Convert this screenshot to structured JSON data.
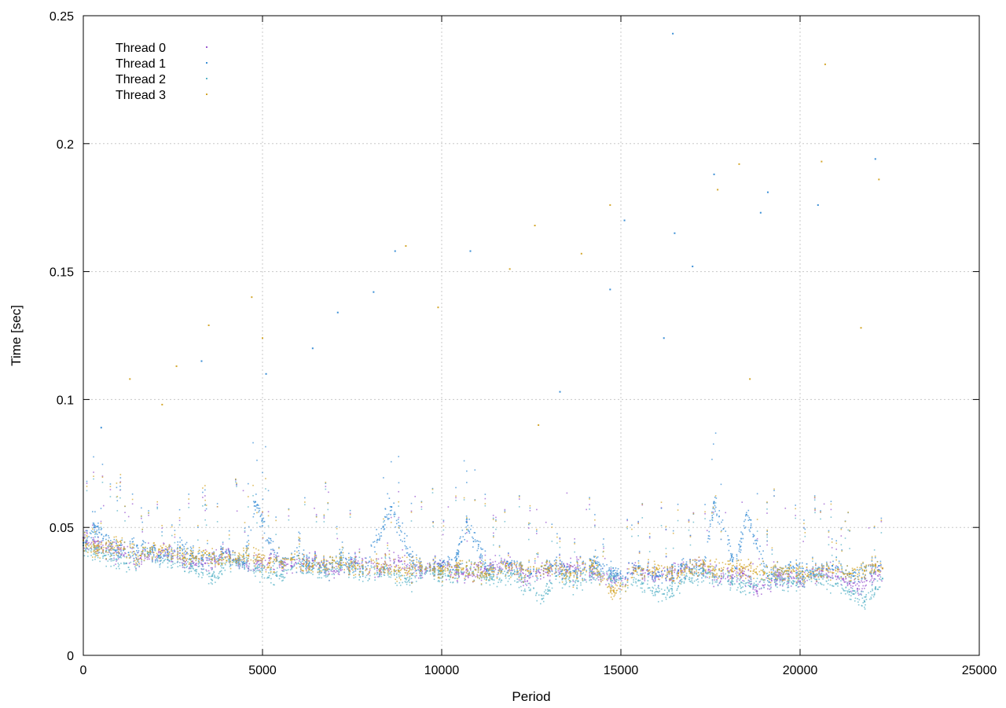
{
  "chart_data": {
    "type": "scatter",
    "title": "",
    "xlabel": "Period",
    "ylabel": "Time [sec]",
    "xlim": [
      0,
      25000
    ],
    "ylim": [
      0,
      0.25
    ],
    "x_ticks": [
      0,
      5000,
      10000,
      15000,
      20000,
      25000
    ],
    "x_tick_labels": [
      "0",
      "5000",
      "10000",
      "15000",
      "20000",
      "25000"
    ],
    "y_ticks": [
      0,
      0.05,
      0.1,
      0.15,
      0.2,
      0.25
    ],
    "y_tick_labels": [
      "0",
      "0.05",
      "0.1",
      "0.15",
      "0.2",
      "0.25"
    ],
    "grid": true,
    "legend_position": "top-left",
    "marker": "dot",
    "series": [
      {
        "name": "Thread 0",
        "color": "#9b59d0",
        "x_range": [
          0,
          22300
        ],
        "summary": {
          "median_start": 0.045,
          "median_end": 0.033,
          "typical_min": 0.022,
          "typical_max": 0.06
        },
        "sample_points": [
          [
            0,
            0.046
          ],
          [
            500,
            0.042
          ],
          [
            1000,
            0.04
          ],
          [
            1600,
            0.038
          ],
          [
            2200,
            0.041
          ],
          [
            2800,
            0.037
          ],
          [
            3400,
            0.036
          ],
          [
            4000,
            0.04
          ],
          [
            4600,
            0.034
          ],
          [
            5200,
            0.038
          ],
          [
            5800,
            0.035
          ],
          [
            6400,
            0.037
          ],
          [
            7000,
            0.033
          ],
          [
            7600,
            0.036
          ],
          [
            8200,
            0.034
          ],
          [
            8800,
            0.037
          ],
          [
            9400,
            0.033
          ],
          [
            10000,
            0.035
          ],
          [
            10600,
            0.032
          ],
          [
            11200,
            0.034
          ],
          [
            11800,
            0.036
          ],
          [
            12400,
            0.031
          ],
          [
            13000,
            0.033
          ],
          [
            13600,
            0.035
          ],
          [
            14200,
            0.032
          ],
          [
            14800,
            0.03
          ],
          [
            15400,
            0.034
          ],
          [
            16000,
            0.031
          ],
          [
            16600,
            0.033
          ],
          [
            17200,
            0.035
          ],
          [
            17800,
            0.03
          ],
          [
            18400,
            0.032
          ],
          [
            18800,
            0.025
          ],
          [
            19400,
            0.031
          ],
          [
            20000,
            0.029
          ],
          [
            20600,
            0.033
          ],
          [
            21200,
            0.03
          ],
          [
            21600,
            0.026
          ],
          [
            22000,
            0.031
          ],
          [
            22300,
            0.034
          ]
        ]
      },
      {
        "name": "Thread 1",
        "color": "#3b8fd6",
        "x_range": [
          0,
          22300
        ],
        "summary": {
          "median_start": 0.045,
          "median_end": 0.034,
          "typical_min": 0.022,
          "typical_max": 0.065
        },
        "sample_points": [
          [
            0,
            0.044
          ],
          [
            300,
            0.05
          ],
          [
            900,
            0.041
          ],
          [
            1500,
            0.043
          ],
          [
            2100,
            0.039
          ],
          [
            2700,
            0.042
          ],
          [
            3300,
            0.038
          ],
          [
            3900,
            0.04
          ],
          [
            4500,
            0.036
          ],
          [
            4800,
            0.06
          ],
          [
            5400,
            0.037
          ],
          [
            6000,
            0.039
          ],
          [
            6600,
            0.035
          ],
          [
            7200,
            0.038
          ],
          [
            7800,
            0.034
          ],
          [
            8600,
            0.058
          ],
          [
            9200,
            0.036
          ],
          [
            9800,
            0.034
          ],
          [
            10400,
            0.037
          ],
          [
            10700,
            0.052
          ],
          [
            11300,
            0.033
          ],
          [
            11900,
            0.036
          ],
          [
            12500,
            0.032
          ],
          [
            13100,
            0.035
          ],
          [
            13700,
            0.033
          ],
          [
            14300,
            0.036
          ],
          [
            14900,
            0.032
          ],
          [
            15500,
            0.034
          ],
          [
            16100,
            0.031
          ],
          [
            16700,
            0.035
          ],
          [
            17300,
            0.033
          ],
          [
            17600,
            0.06
          ],
          [
            18200,
            0.034
          ],
          [
            18500,
            0.055
          ],
          [
            19100,
            0.031
          ],
          [
            19700,
            0.034
          ],
          [
            20300,
            0.032
          ],
          [
            20900,
            0.035
          ],
          [
            21500,
            0.031
          ],
          [
            22200,
            0.035
          ]
        ]
      },
      {
        "name": "Thread 2",
        "color": "#5bb4c8",
        "x_range": [
          0,
          22300
        ],
        "summary": {
          "median_start": 0.043,
          "median_end": 0.03,
          "typical_min": 0.019,
          "typical_max": 0.058
        },
        "sample_points": [
          [
            0,
            0.043
          ],
          [
            600,
            0.039
          ],
          [
            1200,
            0.036
          ],
          [
            1800,
            0.04
          ],
          [
            2400,
            0.037
          ],
          [
            3000,
            0.035
          ],
          [
            3600,
            0.031
          ],
          [
            4200,
            0.037
          ],
          [
            4800,
            0.034
          ],
          [
            5400,
            0.031
          ],
          [
            6000,
            0.036
          ],
          [
            6600,
            0.033
          ],
          [
            7200,
            0.035
          ],
          [
            7800,
            0.032
          ],
          [
            8400,
            0.034
          ],
          [
            9000,
            0.03
          ],
          [
            9600,
            0.033
          ],
          [
            10200,
            0.031
          ],
          [
            10800,
            0.034
          ],
          [
            11400,
            0.03
          ],
          [
            12000,
            0.032
          ],
          [
            12800,
            0.022
          ],
          [
            13200,
            0.031
          ],
          [
            13800,
            0.029
          ],
          [
            14400,
            0.032
          ],
          [
            15000,
            0.03
          ],
          [
            15600,
            0.028
          ],
          [
            16200,
            0.024
          ],
          [
            16800,
            0.03
          ],
          [
            17400,
            0.032
          ],
          [
            18000,
            0.029
          ],
          [
            18600,
            0.027
          ],
          [
            19200,
            0.03
          ],
          [
            19800,
            0.028
          ],
          [
            20400,
            0.031
          ],
          [
            21000,
            0.028
          ],
          [
            21500,
            0.024
          ],
          [
            21800,
            0.021
          ],
          [
            22100,
            0.026
          ],
          [
            22300,
            0.03
          ]
        ]
      },
      {
        "name": "Thread 3",
        "color": "#d4a72c",
        "x_range": [
          0,
          22300
        ],
        "summary": {
          "median_start": 0.045,
          "median_end": 0.034,
          "typical_min": 0.022,
          "typical_max": 0.07
        },
        "sample_points": [
          [
            0,
            0.045
          ],
          [
            400,
            0.041
          ],
          [
            1000,
            0.043
          ],
          [
            1600,
            0.039
          ],
          [
            2200,
            0.042
          ],
          [
            2800,
            0.038
          ],
          [
            3400,
            0.04
          ],
          [
            4000,
            0.037
          ],
          [
            4600,
            0.039
          ],
          [
            5200,
            0.036
          ],
          [
            5800,
            0.038
          ],
          [
            6400,
            0.035
          ],
          [
            7000,
            0.037
          ],
          [
            7600,
            0.034
          ],
          [
            8200,
            0.036
          ],
          [
            8800,
            0.033
          ],
          [
            9400,
            0.035
          ],
          [
            10000,
            0.033
          ],
          [
            10600,
            0.034
          ],
          [
            11200,
            0.032
          ],
          [
            11800,
            0.035
          ],
          [
            12400,
            0.033
          ],
          [
            13000,
            0.034
          ],
          [
            13600,
            0.032
          ],
          [
            14200,
            0.035
          ],
          [
            14800,
            0.025
          ],
          [
            15400,
            0.033
          ],
          [
            16000,
            0.034
          ],
          [
            16600,
            0.032
          ],
          [
            17200,
            0.035
          ],
          [
            17800,
            0.033
          ],
          [
            18400,
            0.034
          ],
          [
            19000,
            0.032
          ],
          [
            19600,
            0.033
          ],
          [
            20200,
            0.031
          ],
          [
            20800,
            0.034
          ],
          [
            21400,
            0.032
          ],
          [
            21800,
            0.033
          ],
          [
            22100,
            0.035
          ],
          [
            22300,
            0.034
          ]
        ]
      }
    ],
    "outliers": [
      {
        "series": "Thread 1",
        "x": 16450,
        "y": 0.243
      },
      {
        "series": "Thread 3",
        "x": 20700,
        "y": 0.231
      },
      {
        "series": "Thread 1",
        "x": 22100,
        "y": 0.194
      },
      {
        "series": "Thread 3",
        "x": 20600,
        "y": 0.193
      },
      {
        "series": "Thread 3",
        "x": 18300,
        "y": 0.192
      },
      {
        "series": "Thread 1",
        "x": 17600,
        "y": 0.188
      },
      {
        "series": "Thread 3",
        "x": 22200,
        "y": 0.186
      },
      {
        "series": "Thread 1",
        "x": 19100,
        "y": 0.181
      },
      {
        "series": "Thread 3",
        "x": 14700,
        "y": 0.176
      },
      {
        "series": "Thread 1",
        "x": 15100,
        "y": 0.17
      },
      {
        "series": "Thread 3",
        "x": 12600,
        "y": 0.168
      },
      {
        "series": "Thread 1",
        "x": 16500,
        "y": 0.165
      },
      {
        "series": "Thread 3",
        "x": 9000,
        "y": 0.16
      },
      {
        "series": "Thread 1",
        "x": 8700,
        "y": 0.158
      },
      {
        "series": "Thread 1",
        "x": 10800,
        "y": 0.158
      },
      {
        "series": "Thread 3",
        "x": 11900,
        "y": 0.151
      },
      {
        "series": "Thread 1",
        "x": 14700,
        "y": 0.143
      },
      {
        "series": "Thread 3",
        "x": 4700,
        "y": 0.14
      },
      {
        "series": "Thread 1",
        "x": 8100,
        "y": 0.142
      },
      {
        "series": "Thread 3",
        "x": 9900,
        "y": 0.136
      },
      {
        "series": "Thread 1",
        "x": 7100,
        "y": 0.134
      },
      {
        "series": "Thread 3",
        "x": 3500,
        "y": 0.129
      },
      {
        "series": "Thread 1",
        "x": 6400,
        "y": 0.12
      },
      {
        "series": "Thread 3",
        "x": 5000,
        "y": 0.124
      },
      {
        "series": "Thread 1",
        "x": 3300,
        "y": 0.115
      },
      {
        "series": "Thread 3",
        "x": 2600,
        "y": 0.113
      },
      {
        "series": "Thread 1",
        "x": 5100,
        "y": 0.11
      },
      {
        "series": "Thread 3",
        "x": 1300,
        "y": 0.108
      },
      {
        "series": "Thread 1",
        "x": 13300,
        "y": 0.103
      },
      {
        "series": "Thread 3",
        "x": 2200,
        "y": 0.098
      },
      {
        "series": "Thread 1",
        "x": 500,
        "y": 0.089
      },
      {
        "series": "Thread 3",
        "x": 18600,
        "y": 0.108
      },
      {
        "series": "Thread 1",
        "x": 17000,
        "y": 0.152
      },
      {
        "series": "Thread 3",
        "x": 12700,
        "y": 0.09
      },
      {
        "series": "Thread 1",
        "x": 20500,
        "y": 0.176
      },
      {
        "series": "Thread 3",
        "x": 21700,
        "y": 0.128
      },
      {
        "series": "Thread 1",
        "x": 16200,
        "y": 0.124
      },
      {
        "series": "Thread 3",
        "x": 17700,
        "y": 0.182
      },
      {
        "series": "Thread 1",
        "x": 18900,
        "y": 0.173
      },
      {
        "series": "Thread 3",
        "x": 13900,
        "y": 0.157
      }
    ]
  }
}
